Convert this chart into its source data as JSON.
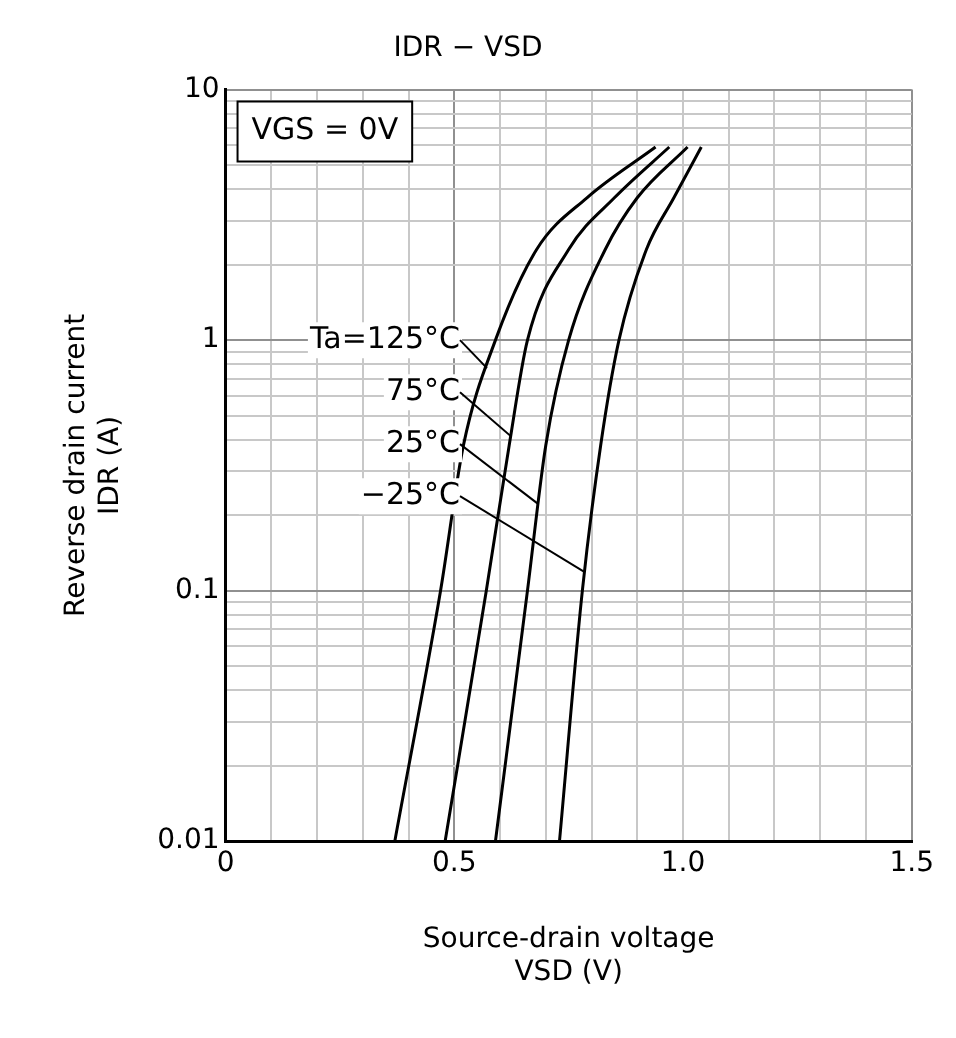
{
  "chart_data": {
    "type": "line",
    "title": "IDR − VSD",
    "xlabel": "Source-drain voltage\nVSD (V)",
    "ylabel": "Reverse drain current\nIDR (A)",
    "log": "y",
    "grid": true,
    "marker": "none",
    "line_style": "solid",
    "xlim": [
      0,
      1.5
    ],
    "ylim": [
      0.01,
      10
    ],
    "xticks": [
      0,
      {
        "value": 0.1,
        "label": null
      },
      {
        "value": 0.2,
        "label": null
      },
      {
        "value": 0.3,
        "label": null
      },
      {
        "value": 0.4,
        "label": null
      },
      0.5,
      {
        "value": 0.6,
        "label": null
      },
      {
        "value": 0.7,
        "label": null
      },
      {
        "value": 0.8,
        "label": null
      },
      {
        "value": 0.9,
        "label": null
      },
      {
        "value": 1,
        "label": "1.0"
      },
      {
        "value": 1.1,
        "label": null
      },
      {
        "value": 1.2,
        "label": null
      },
      {
        "value": 1.3,
        "label": null
      },
      {
        "value": 1.4,
        "label": null
      },
      1.5
    ],
    "yticks": [
      0.01,
      {
        "value": 0.02,
        "label": null
      },
      {
        "value": 0.03,
        "label": null
      },
      {
        "value": 0.04,
        "label": null
      },
      {
        "value": 0.05,
        "label": null
      },
      {
        "value": 0.06,
        "label": null
      },
      {
        "value": 0.07,
        "label": null
      },
      {
        "value": 0.08,
        "label": null
      },
      {
        "value": 0.09,
        "label": null
      },
      0.1,
      {
        "value": 0.2,
        "label": null
      },
      {
        "value": 0.3,
        "label": null
      },
      {
        "value": 0.4,
        "label": null
      },
      {
        "value": 0.5,
        "label": null
      },
      {
        "value": 0.6,
        "label": null
      },
      {
        "value": 0.7,
        "label": null
      },
      {
        "value": 0.8,
        "label": null
      },
      {
        "value": 0.9,
        "label": null
      },
      1,
      {
        "value": 2,
        "label": null
      },
      {
        "value": 3,
        "label": null
      },
      {
        "value": 4,
        "label": null
      },
      {
        "value": 5,
        "label": null
      },
      {
        "value": 6,
        "label": null
      },
      {
        "value": 7,
        "label": null
      },
      {
        "value": 8,
        "label": null
      },
      {
        "value": 9,
        "label": null
      },
      10
    ],
    "annotations": [
      "VGS = 0V"
    ],
    "series": [
      {
        "name": "Ta=125°C",
        "color": "#000000",
        "x": [
          0.37,
          0.47,
          0.52,
          0.59,
          0.68,
          0.79,
          0.94
        ],
        "values": [
          0.01,
          0.1,
          0.38,
          1,
          2.3,
          3.7,
          5.9
        ]
      },
      {
        "name": "75°C",
        "color": "#000000",
        "x": [
          0.48,
          0.57,
          0.62,
          0.66,
          0.75,
          0.85,
          0.97
        ],
        "values": [
          0.01,
          0.1,
          0.38,
          1,
          2.3,
          3.7,
          5.9
        ]
      },
      {
        "name": "25°C",
        "color": "#000000",
        "x": [
          0.59,
          0.66,
          0.7,
          0.75,
          0.83,
          0.9,
          1.01
        ],
        "values": [
          0.01,
          0.1,
          0.38,
          1,
          2.3,
          3.7,
          5.9
        ]
      },
      {
        "name": "−25°C",
        "color": "#000000",
        "x": [
          0.73,
          0.78,
          0.82,
          0.86,
          0.92,
          0.98,
          1.04
        ],
        "values": [
          0.01,
          0.1,
          0.38,
          1,
          2.3,
          3.7,
          5.9
        ]
      }
    ]
  }
}
